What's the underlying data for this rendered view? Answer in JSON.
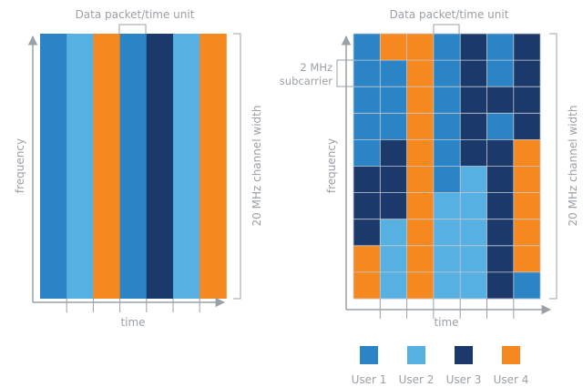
{
  "colors": {
    "user1": "#2a84c6",
    "user2": "#56b0e2",
    "user3": "#1b3a6b",
    "user4": "#f5891f",
    "axis": "#9aa0a6",
    "grid": "#c7c9cc"
  },
  "left_diagram": {
    "top_label": "Data packet/time unit",
    "x_label": "time",
    "y_label": "frequency",
    "right_label": "20 MHz channel width",
    "columns": [
      1,
      2,
      4,
      1,
      3,
      2,
      4
    ]
  },
  "right_diagram": {
    "top_label": "Data packet/time unit",
    "x_label": "time",
    "y_label": "frequency",
    "right_label": "20 MHz channel width",
    "subcarrier_label_line1": "2 MHz",
    "subcarrier_label_line2": "subcarrier",
    "grid": [
      [
        1,
        4,
        4,
        1,
        3,
        1,
        3
      ],
      [
        1,
        1,
        4,
        1,
        3,
        1,
        3
      ],
      [
        1,
        1,
        4,
        1,
        3,
        3,
        3
      ],
      [
        1,
        1,
        4,
        1,
        3,
        1,
        3
      ],
      [
        1,
        3,
        4,
        1,
        3,
        3,
        4
      ],
      [
        3,
        3,
        4,
        1,
        2,
        3,
        4
      ],
      [
        3,
        3,
        4,
        2,
        2,
        3,
        4
      ],
      [
        3,
        2,
        4,
        2,
        2,
        3,
        4
      ],
      [
        4,
        2,
        4,
        2,
        2,
        3,
        4
      ],
      [
        4,
        2,
        4,
        2,
        2,
        3,
        1
      ]
    ]
  },
  "legend": [
    {
      "label": "User 1",
      "user": 1
    },
    {
      "label": "User 2",
      "user": 2
    },
    {
      "label": "User 3",
      "user": 3
    },
    {
      "label": "User 4",
      "user": 4
    }
  ]
}
